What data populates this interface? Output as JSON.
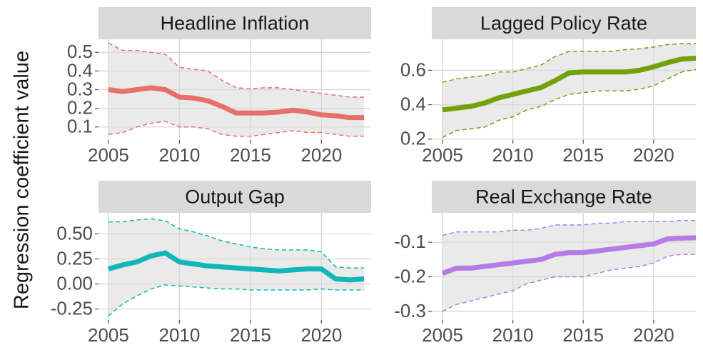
{
  "ylabel": "Regression coefficient value",
  "chart_data": [
    {
      "type": "line",
      "title": "Headline Inflation",
      "color": "#e8706a",
      "grid": true,
      "x": [
        2005,
        2006,
        2007,
        2008,
        2009,
        2010,
        2011,
        2012,
        2013,
        2014,
        2015,
        2016,
        2017,
        2018,
        2019,
        2020,
        2021,
        2022,
        2023
      ],
      "values": [
        0.3,
        0.29,
        0.3,
        0.31,
        0.3,
        0.26,
        0.255,
        0.24,
        0.21,
        0.175,
        0.175,
        0.175,
        0.18,
        0.19,
        0.18,
        0.165,
        0.16,
        0.15,
        0.15
      ],
      "upper": [
        0.55,
        0.51,
        0.51,
        0.5,
        0.49,
        0.42,
        0.41,
        0.4,
        0.35,
        0.31,
        0.305,
        0.31,
        0.31,
        0.3,
        0.29,
        0.28,
        0.27,
        0.26,
        0.26
      ],
      "lower": [
        0.06,
        0.07,
        0.1,
        0.12,
        0.13,
        0.1,
        0.1,
        0.09,
        0.06,
        0.05,
        0.05,
        0.06,
        0.07,
        0.08,
        0.07,
        0.07,
        0.06,
        0.05,
        0.05
      ],
      "xlim": [
        2004.3,
        2023.5
      ],
      "xticks": [
        2005,
        2010,
        2015,
        2020
      ],
      "ylim": [
        0.03,
        0.57
      ],
      "yticks": [
        0.1,
        0.2,
        0.3,
        0.4,
        0.5
      ]
    },
    {
      "type": "line",
      "title": "Lagged Policy Rate",
      "color": "#72a10a",
      "grid": true,
      "x": [
        2005,
        2006,
        2007,
        2008,
        2009,
        2010,
        2011,
        2012,
        2013,
        2014,
        2015,
        2016,
        2017,
        2018,
        2019,
        2020,
        2021,
        2022,
        2023
      ],
      "values": [
        0.37,
        0.38,
        0.39,
        0.41,
        0.44,
        0.46,
        0.48,
        0.5,
        0.54,
        0.585,
        0.59,
        0.59,
        0.59,
        0.59,
        0.6,
        0.62,
        0.645,
        0.665,
        0.67
      ],
      "upper": [
        0.53,
        0.55,
        0.56,
        0.57,
        0.59,
        0.59,
        0.61,
        0.63,
        0.68,
        0.71,
        0.71,
        0.71,
        0.71,
        0.72,
        0.725,
        0.735,
        0.75,
        0.755,
        0.755
      ],
      "lower": [
        0.21,
        0.25,
        0.26,
        0.27,
        0.31,
        0.33,
        0.37,
        0.39,
        0.43,
        0.46,
        0.47,
        0.48,
        0.48,
        0.48,
        0.49,
        0.51,
        0.55,
        0.59,
        0.605
      ],
      "xlim": [
        2004.24,
        2023.0
      ],
      "xticks": [
        2005,
        2010,
        2015,
        2020
      ],
      "ylim": [
        0.195,
        0.78
      ],
      "yticks": [
        {
          "value": 0.2,
          "label": "0.2"
        },
        {
          "value": 0.4,
          "label": "0.4"
        },
        {
          "value": 0.6,
          "label": "0.6"
        }
      ]
    },
    {
      "type": "line",
      "title": "Output Gap",
      "color": "#10b7b7",
      "grid": true,
      "x": [
        2005,
        2006,
        2007,
        2008,
        2009,
        2010,
        2011,
        2012,
        2013,
        2014,
        2015,
        2016,
        2017,
        2018,
        2019,
        2020,
        2021,
        2022,
        2023
      ],
      "values": [
        0.15,
        0.19,
        0.22,
        0.28,
        0.31,
        0.22,
        0.2,
        0.18,
        0.17,
        0.16,
        0.15,
        0.14,
        0.13,
        0.14,
        0.15,
        0.15,
        0.05,
        0.04,
        0.05
      ],
      "upper": [
        0.62,
        0.62,
        0.64,
        0.65,
        0.63,
        0.55,
        0.52,
        0.48,
        0.43,
        0.4,
        0.37,
        0.35,
        0.34,
        0.34,
        0.34,
        0.32,
        0.17,
        0.16,
        0.16
      ],
      "lower": [
        -0.32,
        -0.2,
        -0.12,
        -0.05,
        -0.01,
        -0.02,
        -0.03,
        -0.04,
        -0.05,
        -0.05,
        -0.06,
        -0.06,
        -0.06,
        -0.06,
        -0.06,
        -0.05,
        -0.06,
        -0.06,
        -0.06
      ],
      "xlim": [
        2004.3,
        2023.5
      ],
      "xticks": [
        2005,
        2010,
        2015,
        2020
      ],
      "ylim": [
        -0.36,
        0.71
      ],
      "yticks": [
        -0.25,
        {
          "value": 0,
          "label": "0.00"
        },
        0.25,
        {
          "value": 0.5,
          "label": "0.50"
        }
      ]
    },
    {
      "type": "line",
      "title": "Real Exchange Rate",
      "color": "#b67be8",
      "grid": true,
      "x": [
        2005,
        2006,
        2007,
        2008,
        2009,
        2010,
        2011,
        2012,
        2013,
        2014,
        2015,
        2016,
        2017,
        2018,
        2019,
        2020,
        2021,
        2022,
        2023
      ],
      "values": [
        -0.19,
        -0.175,
        -0.175,
        -0.17,
        -0.165,
        -0.16,
        -0.155,
        -0.15,
        -0.135,
        -0.13,
        -0.13,
        -0.125,
        -0.12,
        -0.115,
        -0.11,
        -0.105,
        -0.09,
        -0.088,
        -0.087
      ],
      "upper": [
        -0.08,
        -0.07,
        -0.07,
        -0.07,
        -0.07,
        -0.065,
        -0.065,
        -0.06,
        -0.05,
        -0.05,
        -0.05,
        -0.045,
        -0.045,
        -0.04,
        -0.04,
        -0.04,
        -0.04,
        -0.037,
        -0.037
      ],
      "lower": [
        -0.3,
        -0.28,
        -0.27,
        -0.26,
        -0.25,
        -0.24,
        -0.22,
        -0.21,
        -0.2,
        -0.2,
        -0.2,
        -0.19,
        -0.18,
        -0.175,
        -0.17,
        -0.16,
        -0.14,
        -0.135,
        -0.135
      ],
      "xlim": [
        2004.24,
        2023.0
      ],
      "xticks": [
        2005,
        2010,
        2015,
        2020
      ],
      "ylim": [
        -0.325,
        -0.015
      ],
      "yticks": [
        -0.3,
        -0.2,
        -0.1
      ]
    }
  ]
}
